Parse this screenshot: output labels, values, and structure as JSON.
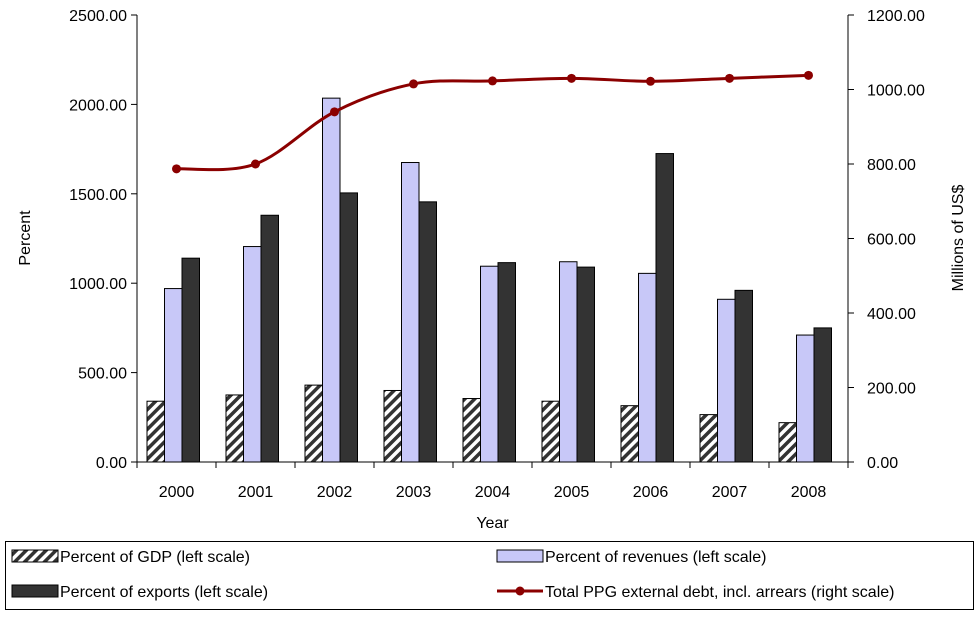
{
  "chart_data": {
    "type": "bar",
    "categories": [
      "2000",
      "2001",
      "2002",
      "2003",
      "2004",
      "2005",
      "2006",
      "2007",
      "2008"
    ],
    "xlabel": "Year",
    "ylabel_left": "Percent",
    "ylabel_right": "Millions of US$",
    "ylim_left": [
      0,
      2500
    ],
    "ylim_right": [
      0,
      1200
    ],
    "left_ticks": [
      "0.00",
      "500.00",
      "1000.00",
      "1500.00",
      "2000.00",
      "2500.00"
    ],
    "right_ticks": [
      "0.00",
      "200.00",
      "400.00",
      "600.00",
      "800.00",
      "1000.00",
      "1200.00"
    ],
    "grid": false,
    "legend_position": "bottom",
    "series": [
      {
        "name": "Percent of GDP (left scale)",
        "type": "bar",
        "axis": "left",
        "fill": "hatch",
        "values": [
          340,
          375,
          430,
          400,
          355,
          340,
          315,
          265,
          220
        ]
      },
      {
        "name": "Percent of revenues (left scale)",
        "type": "bar",
        "axis": "left",
        "color": "#c8c8f8",
        "values": [
          970,
          1205,
          2035,
          1675,
          1095,
          1120,
          1055,
          910,
          710
        ]
      },
      {
        "name": "Percent of exports (left scale)",
        "type": "bar",
        "axis": "left",
        "color": "#333333",
        "values": [
          1140,
          1380,
          1505,
          1455,
          1115,
          1090,
          1725,
          960,
          750
        ]
      },
      {
        "name": "Total PPG external debt, incl. arrears (right scale)",
        "type": "line",
        "axis": "right",
        "color": "#8b0000",
        "values": [
          787,
          800,
          940,
          1015,
          1023,
          1030,
          1022,
          1030,
          1038
        ]
      }
    ]
  }
}
